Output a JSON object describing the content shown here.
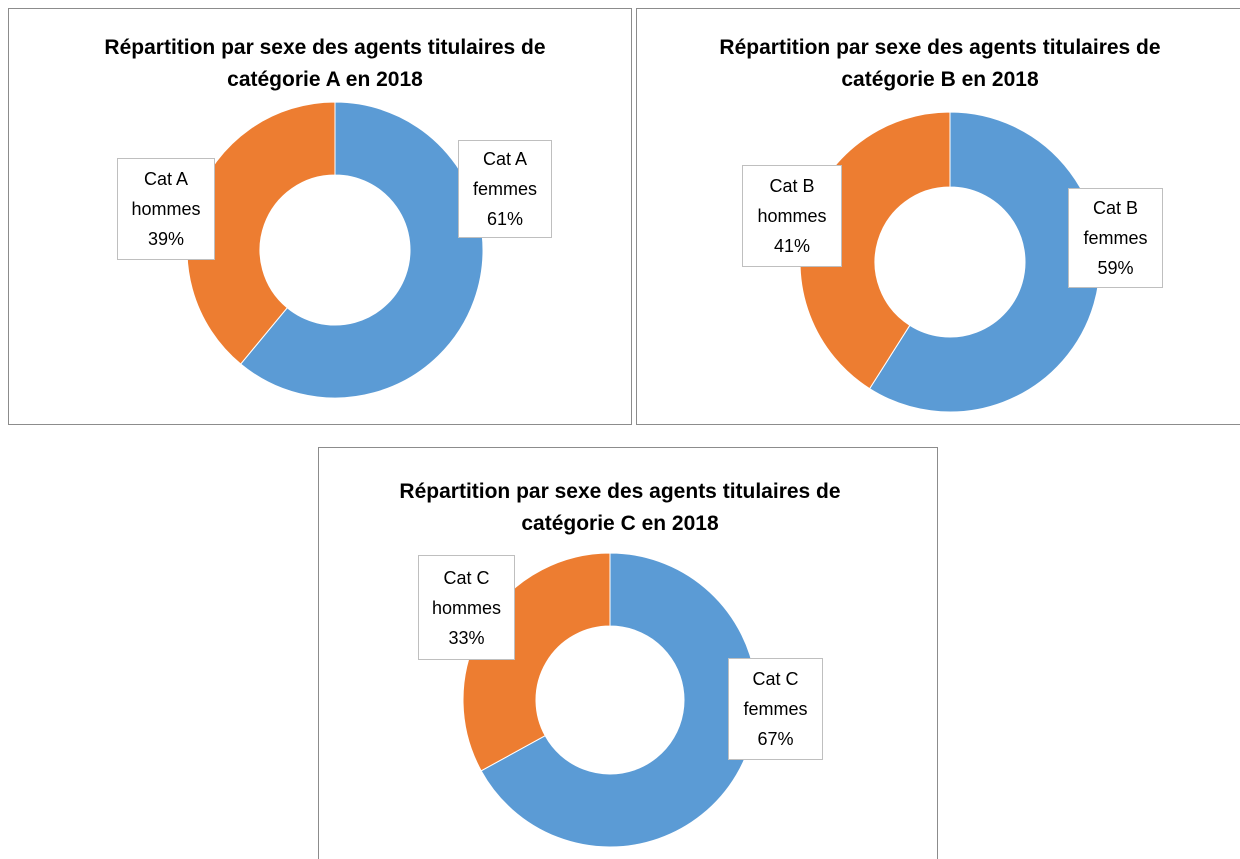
{
  "chart_data": [
    {
      "type": "pie",
      "donut": true,
      "title": "Répartition par sexe des agents titulaires de catégorie A en 2018",
      "categories": [
        "Cat A femmes",
        "Cat A hommes"
      ],
      "values": [
        61,
        39
      ],
      "value_labels": [
        "61%",
        "39%"
      ],
      "colors": [
        "#5b9bd5",
        "#ed7d31"
      ]
    },
    {
      "type": "pie",
      "donut": true,
      "title": "Répartition par sexe des agents titulaires de catégorie B en 2018",
      "categories": [
        "Cat B femmes",
        "Cat B hommes"
      ],
      "values": [
        59,
        41
      ],
      "value_labels": [
        "59%",
        "41%"
      ],
      "colors": [
        "#5b9bd5",
        "#ed7d31"
      ]
    },
    {
      "type": "pie",
      "donut": true,
      "title": "Répartition par sexe des agents titulaires de catégorie C en 2018",
      "categories": [
        "Cat C femmes",
        "Cat C hommes"
      ],
      "values": [
        67,
        33
      ],
      "value_labels": [
        "67%",
        "33%"
      ],
      "colors": [
        "#5b9bd5",
        "#ed7d31"
      ]
    }
  ]
}
